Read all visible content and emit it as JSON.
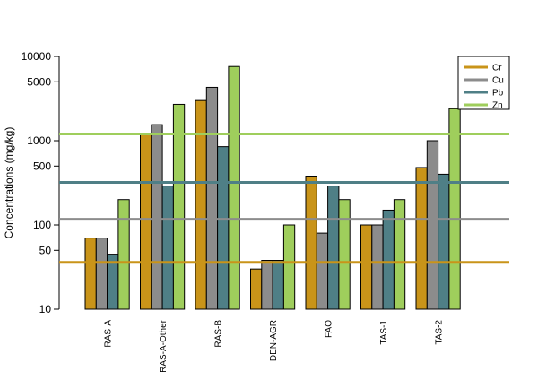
{
  "chart_data": {
    "type": "bar",
    "ylabel": "Concentrations (mg/kg)",
    "yscale": "log",
    "ylim": [
      10,
      10000
    ],
    "yticks": [
      "10",
      "50",
      "100",
      "500",
      "1000",
      "5000",
      "10000"
    ],
    "categories": [
      "RAS-A",
      "RAS-A-Other",
      "RAS-B",
      "DEN-AGR",
      "FAO",
      "TAS-1",
      "TAS-2"
    ],
    "series": [
      {
        "name": "Cr",
        "color": "#c99419",
        "values": [
          70,
          1200,
          3000,
          30,
          380,
          100,
          480
        ]
      },
      {
        "name": "Cu",
        "color": "#8c8c8c",
        "values": [
          70,
          1550,
          4300,
          38,
          80,
          100,
          1000
        ]
      },
      {
        "name": "Pb",
        "color": "#4f7f86",
        "values": [
          45,
          290,
          850,
          38,
          290,
          150,
          400
        ]
      },
      {
        "name": "Zn",
        "color": "#9fce5c",
        "values": [
          200,
          2700,
          7600,
          100,
          200,
          200,
          2400
        ]
      }
    ],
    "reference_lines": [
      {
        "series": "Cr",
        "value": 36
      },
      {
        "series": "Cu",
        "value": 117
      },
      {
        "series": "Pb",
        "value": 320
      },
      {
        "series": "Zn",
        "value": 1200
      }
    ],
    "legend_position": "top-right",
    "grid": false
  }
}
